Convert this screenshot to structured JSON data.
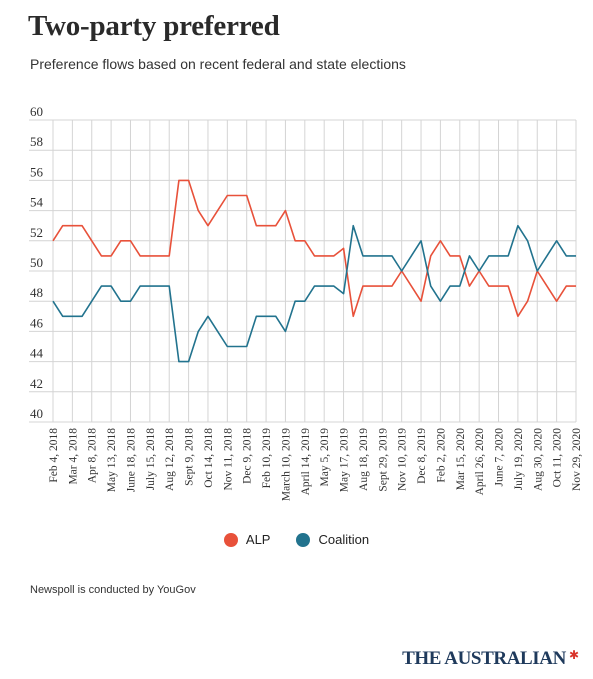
{
  "title": "Two-party preferred",
  "subtitle": "Preference flows based on recent federal and state elections",
  "footnote": "Newspoll is conducted by YouGov",
  "brand": {
    "name": "THE AUSTRALIAN",
    "mark": "star-icon"
  },
  "colors": {
    "alp": "#e8513a",
    "coalition": "#22738e",
    "grid": "#d4d4d4",
    "text": "#333333"
  },
  "chart_data": {
    "type": "line",
    "title": "Two-party preferred",
    "subtitle": "Preference flows based on recent federal and state elections",
    "xlabel": "",
    "ylabel": "",
    "ylim": [
      40,
      60
    ],
    "yticks": [
      40,
      42,
      44,
      46,
      48,
      50,
      52,
      54,
      56,
      58,
      60
    ],
    "grid": true,
    "legend_position": "bottom-center",
    "x_tick_labels": [
      "Feb 4, 2018",
      "Mar 4, 2018",
      "Apr 8, 2018",
      "May 13, 2018",
      "June 18, 2018",
      "July 15, 2018",
      "Aug 12, 2018",
      "Sept 9, 2018",
      "Oct 14, 2018",
      "Nov 11, 2018",
      "Dec 9, 2018",
      "Feb 10, 2019",
      "March 10, 2019",
      "April 14, 2019",
      "May 5, 2019",
      "May 17, 2019",
      "Aug 18, 2019",
      "Sept 29, 2019",
      "Nov 10, 2019",
      "Dec 8, 2019",
      "Feb 2, 2020",
      "Mar 15, 2020",
      "April 26, 2020",
      "June 7, 2020",
      "July 19, 2020",
      "Aug 30, 2020",
      "Oct 11, 2020",
      "Nov 29, 2020"
    ],
    "series": [
      {
        "name": "ALP",
        "values": [
          52,
          53,
          53,
          53,
          52,
          51,
          51,
          52,
          52,
          51,
          51,
          51,
          51,
          56,
          56,
          54,
          53,
          54,
          55,
          55,
          55,
          53,
          53,
          53,
          54,
          52,
          52,
          51,
          51,
          51,
          51.5,
          47,
          49,
          49,
          49,
          49,
          50,
          49,
          48,
          51,
          52,
          51,
          51,
          49,
          50,
          49,
          49,
          49,
          47,
          48,
          50,
          49,
          48,
          49,
          49
        ]
      },
      {
        "name": "Coalition",
        "values": [
          48,
          47,
          47,
          47,
          48,
          49,
          49,
          48,
          48,
          49,
          49,
          49,
          49,
          44,
          44,
          46,
          47,
          46,
          45,
          45,
          45,
          47,
          47,
          47,
          46,
          48,
          48,
          49,
          49,
          49,
          48.5,
          53,
          51,
          51,
          51,
          51,
          50,
          51,
          52,
          49,
          48,
          49,
          49,
          51,
          50,
          51,
          51,
          51,
          53,
          52,
          50,
          51,
          52,
          51,
          51
        ]
      }
    ]
  }
}
